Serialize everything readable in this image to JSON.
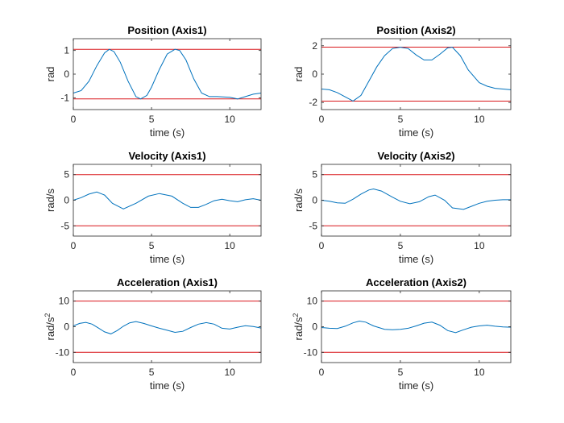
{
  "colors": {
    "data": "#0072BD",
    "limit": "#D9171A",
    "axes": "#262626",
    "frame": "#262626"
  },
  "chart_data": [
    {
      "type": "line",
      "title": "Position (Axis1)",
      "xlabel": "time (s)",
      "ylabel": "rad",
      "ylabel_sup": "",
      "xlim": [
        0,
        12
      ],
      "ylim": [
        -1.5,
        1.5
      ],
      "xticks": [
        0,
        5,
        10
      ],
      "yticks": [
        -1,
        0,
        1
      ],
      "limits": [
        1.05,
        -1.05
      ],
      "series": [
        {
          "x": [
            0,
            0.5,
            1,
            1.5,
            2,
            2.3,
            2.6,
            3,
            3.5,
            4,
            4.3,
            4.7,
            5,
            5.5,
            6,
            6.5,
            6.8,
            7.2,
            7.7,
            8.2,
            8.7,
            9.2,
            10,
            10.5,
            11,
            11.5,
            12
          ],
          "y": [
            -0.8,
            -0.7,
            -0.3,
            0.35,
            0.9,
            1.05,
            0.95,
            0.5,
            -0.3,
            -0.95,
            -1.05,
            -0.9,
            -0.55,
            0.2,
            0.85,
            1.05,
            1.0,
            0.6,
            -0.2,
            -0.8,
            -0.95,
            -0.95,
            -0.98,
            -1.05,
            -0.95,
            -0.85,
            -0.8
          ]
        }
      ]
    },
    {
      "type": "line",
      "title": "Position (Axis2)",
      "xlabel": "time (s)",
      "ylabel": "rad",
      "ylabel_sup": "",
      "xlim": [
        0,
        12
      ],
      "ylim": [
        -2.5,
        2.5
      ],
      "xticks": [
        0,
        5,
        10
      ],
      "yticks": [
        -2,
        0,
        2
      ],
      "limits": [
        1.9,
        -1.9
      ],
      "series": [
        {
          "x": [
            0,
            0.5,
            1,
            1.5,
            2,
            2.5,
            3,
            3.5,
            4,
            4.5,
            5,
            5.5,
            6,
            6.5,
            7,
            7.5,
            8,
            8.3,
            8.8,
            9.3,
            10,
            10.5,
            11,
            11.5,
            12
          ],
          "y": [
            -1.05,
            -1.1,
            -1.3,
            -1.6,
            -1.9,
            -1.5,
            -0.5,
            0.5,
            1.3,
            1.8,
            1.9,
            1.8,
            1.35,
            1.0,
            1.0,
            1.4,
            1.85,
            1.9,
            1.3,
            0.3,
            -0.6,
            -0.85,
            -1.0,
            -1.05,
            -1.1
          ]
        }
      ]
    },
    {
      "type": "line",
      "title": "Velocity (Axis1)",
      "xlabel": "time (s)",
      "ylabel": "rad/s",
      "ylabel_sup": "",
      "xlim": [
        0,
        12
      ],
      "ylim": [
        -7,
        7
      ],
      "xticks": [
        0,
        5,
        10
      ],
      "yticks": [
        -5,
        0,
        5
      ],
      "limits": [
        5,
        -5
      ],
      "series": [
        {
          "x": [
            0,
            0.5,
            1,
            1.5,
            2,
            2.5,
            3.2,
            4,
            4.8,
            5.5,
            6.3,
            7,
            7.5,
            8,
            8.5,
            9,
            9.5,
            10,
            10.5,
            11,
            11.5,
            12
          ],
          "y": [
            0,
            0.5,
            1.2,
            1.6,
            1.0,
            -0.6,
            -1.7,
            -0.6,
            0.8,
            1.3,
            0.8,
            -0.6,
            -1.4,
            -1.4,
            -0.8,
            -0.1,
            0.2,
            -0.1,
            -0.3,
            0.1,
            0.3,
            0.0
          ]
        }
      ]
    },
    {
      "type": "line",
      "title": "Velocity (Axis2)",
      "xlabel": "time (s)",
      "ylabel": "rad/s",
      "ylabel_sup": "",
      "xlim": [
        0,
        12
      ],
      "ylim": [
        -7,
        7
      ],
      "xticks": [
        0,
        5,
        10
      ],
      "yticks": [
        -5,
        0,
        5
      ],
      "limits": [
        5,
        -5
      ],
      "series": [
        {
          "x": [
            0,
            0.5,
            1,
            1.5,
            2,
            2.5,
            3,
            3.3,
            3.8,
            4.5,
            5,
            5.6,
            6.2,
            6.8,
            7.2,
            7.8,
            8.3,
            9,
            9.5,
            10,
            10.5,
            11,
            11.5,
            12
          ],
          "y": [
            0,
            -0.2,
            -0.5,
            -0.6,
            0.2,
            1.2,
            2.0,
            2.2,
            1.8,
            0.6,
            -0.2,
            -0.7,
            -0.3,
            0.7,
            1.0,
            0.0,
            -1.5,
            -1.8,
            -1.2,
            -0.6,
            -0.2,
            0.0,
            0.1,
            0.1
          ]
        }
      ]
    },
    {
      "type": "line",
      "title": "Acceleration (Axis1)",
      "xlabel": "time (s)",
      "ylabel": "rad/s",
      "ylabel_sup": "2",
      "xlim": [
        0,
        12
      ],
      "ylim": [
        -14,
        14
      ],
      "xticks": [
        0,
        5,
        10
      ],
      "yticks": [
        -10,
        0,
        10
      ],
      "limits": [
        10,
        -10
      ],
      "series": [
        {
          "x": [
            0,
            0.4,
            0.8,
            1.2,
            1.6,
            2,
            2.4,
            2.8,
            3.2,
            3.6,
            4,
            4.5,
            5,
            5.5,
            6,
            6.5,
            7,
            7.5,
            8,
            8.5,
            9,
            9.5,
            10,
            10.5,
            11,
            11.5,
            12
          ],
          "y": [
            0.3,
            1.3,
            1.7,
            1.0,
            -0.5,
            -2.0,
            -2.8,
            -1.5,
            0.2,
            1.5,
            2.0,
            1.3,
            0.3,
            -0.6,
            -1.4,
            -2.2,
            -1.8,
            -0.3,
            1.0,
            1.6,
            1.0,
            -0.6,
            -0.9,
            -0.2,
            0.4,
            0.1,
            -0.5
          ]
        }
      ]
    },
    {
      "type": "line",
      "title": "Acceleration (Axis2)",
      "xlabel": "time (s)",
      "ylabel": "rad/s",
      "ylabel_sup": "2",
      "xlim": [
        0,
        12
      ],
      "ylim": [
        -14,
        14
      ],
      "xticks": [
        0,
        5,
        10
      ],
      "yticks": [
        -10,
        0,
        10
      ],
      "limits": [
        10,
        -10
      ],
      "series": [
        {
          "x": [
            0,
            0.5,
            1,
            1.5,
            2,
            2.4,
            2.8,
            3.3,
            4,
            4.5,
            5,
            5.5,
            6,
            6.5,
            7,
            7.5,
            8,
            8.5,
            9,
            9.5,
            10,
            10.5,
            11,
            11.5,
            12
          ],
          "y": [
            -0.3,
            -0.6,
            -0.7,
            0.2,
            1.5,
            2.2,
            1.8,
            0.3,
            -1.0,
            -1.2,
            -1.0,
            -0.6,
            0.3,
            1.4,
            1.8,
            0.6,
            -1.5,
            -2.3,
            -1.2,
            -0.2,
            0.3,
            0.6,
            0.2,
            -0.1,
            -0.2
          ]
        }
      ]
    }
  ]
}
